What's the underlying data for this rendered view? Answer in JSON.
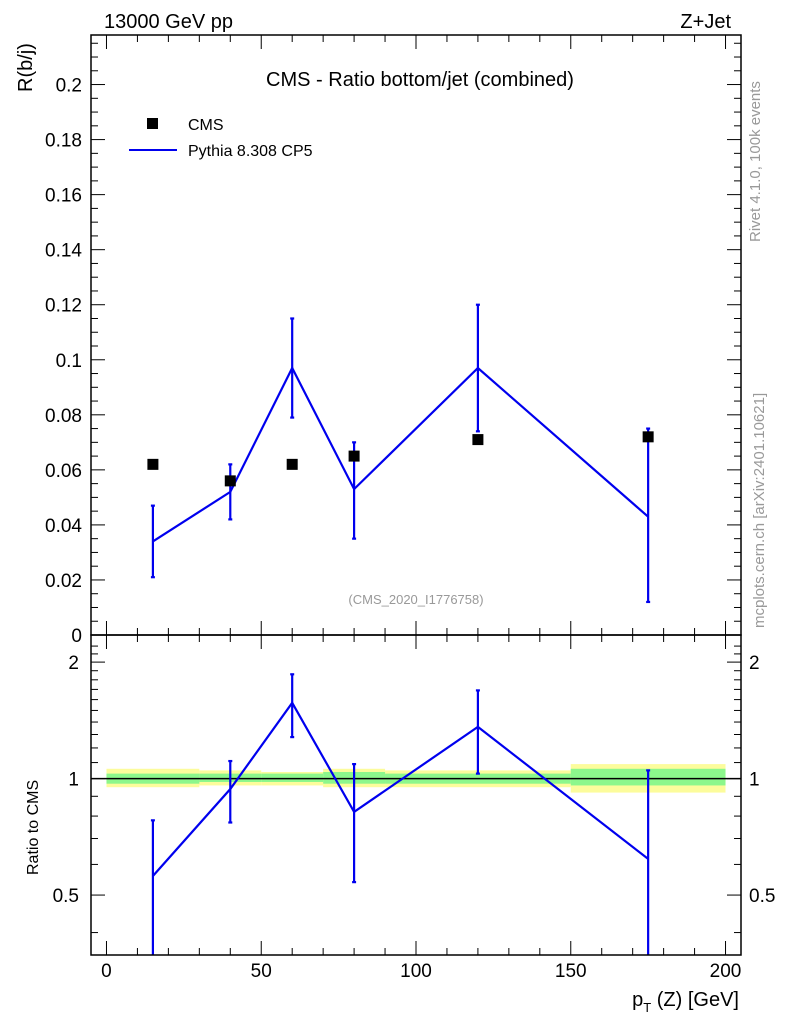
{
  "header": {
    "left_label": "13000 GeV pp",
    "right_label": "Z+Jet"
  },
  "side_labels": {
    "rivet": "Rivet 4.1.0,  100k events",
    "mcplots": "mcplots.cern.ch [arXiv:2401.10621]"
  },
  "chart_data": [
    {
      "type": "scatter",
      "title": "CMS - Ratio bottom/jet (combined)",
      "ylabel": "R(b/j)",
      "annotation": "(CMS_2020_I1776758)",
      "xlim": [
        -5,
        205
      ],
      "ylim": [
        0,
        0.218
      ],
      "yticks": [
        0,
        0.02,
        0.04,
        0.06,
        0.08,
        0.1,
        0.12,
        0.14,
        0.16,
        0.18,
        0.2
      ],
      "ytick_labels": [
        "0",
        "0.02",
        "0.04",
        "0.06",
        "0.08",
        "0.1",
        "0.12",
        "0.14",
        "0.16",
        "0.18",
        "0.2"
      ],
      "legend_position": "top-left",
      "series": [
        {
          "name": "CMS",
          "style": "markers",
          "color": "#000000",
          "x": [
            15,
            40,
            60,
            80,
            120,
            175
          ],
          "y": [
            0.062,
            0.056,
            0.062,
            0.065,
            0.071,
            0.072
          ]
        },
        {
          "name": "Pythia 8.308 CP5",
          "style": "line",
          "color": "#0000ee",
          "x": [
            15,
            40,
            60,
            80,
            120,
            175
          ],
          "y": [
            0.034,
            0.052,
            0.097,
            0.053,
            0.097,
            0.043
          ],
          "yerr_low": [
            0.013,
            0.01,
            0.018,
            0.018,
            0.023,
            0.031
          ],
          "yerr_high": [
            0.013,
            0.01,
            0.018,
            0.017,
            0.023,
            0.032
          ]
        }
      ]
    },
    {
      "type": "line",
      "ylabel": "Ratio to CMS",
      "xlabel": "p_T (Z) [GeV]",
      "xlim": [
        -5,
        205
      ],
      "ylim": [
        0.35,
        2.35
      ],
      "xticks": [
        0,
        50,
        100,
        150,
        200
      ],
      "xtick_labels": [
        "0",
        "50",
        "100",
        "150",
        "200"
      ],
      "yticks": [
        0.5,
        1,
        2
      ],
      "ytick_labels": [
        "0.5",
        "1",
        "2"
      ],
      "reference_line": 1,
      "uncertainty_bands": [
        {
          "x_low": 0,
          "x_high": 30,
          "inner": [
            0.97,
            1.03
          ],
          "outer": [
            0.95,
            1.06
          ]
        },
        {
          "x_low": 30,
          "x_high": 50,
          "inner": [
            0.98,
            1.03
          ],
          "outer": [
            0.96,
            1.05
          ]
        },
        {
          "x_low": 50,
          "x_high": 70,
          "inner": [
            0.98,
            1.03
          ],
          "outer": [
            0.96,
            1.04
          ]
        },
        {
          "x_low": 70,
          "x_high": 90,
          "inner": [
            0.97,
            1.04
          ],
          "outer": [
            0.95,
            1.06
          ]
        },
        {
          "x_low": 90,
          "x_high": 150,
          "inner": [
            0.97,
            1.03
          ],
          "outer": [
            0.95,
            1.05
          ]
        },
        {
          "x_low": 150,
          "x_high": 200,
          "inner": [
            0.96,
            1.06
          ],
          "outer": [
            0.92,
            1.09
          ]
        }
      ],
      "series": [
        {
          "name": "Pythia 8.308 CP5",
          "color": "#0000ee",
          "x": [
            15,
            40,
            60,
            80,
            120,
            175
          ],
          "y": [
            0.56,
            0.94,
            1.57,
            0.82,
            1.36,
            0.62
          ],
          "yerr_low": [
            0.22,
            0.17,
            0.29,
            0.28,
            0.33,
            0.44
          ],
          "yerr_high": [
            0.22,
            0.17,
            0.29,
            0.27,
            0.33,
            0.43
          ]
        }
      ]
    }
  ],
  "colors": {
    "band_inner": "#8cf78c",
    "band_outer": "#fcfc9c",
    "axis": "#000000",
    "watermark": "#999999"
  }
}
